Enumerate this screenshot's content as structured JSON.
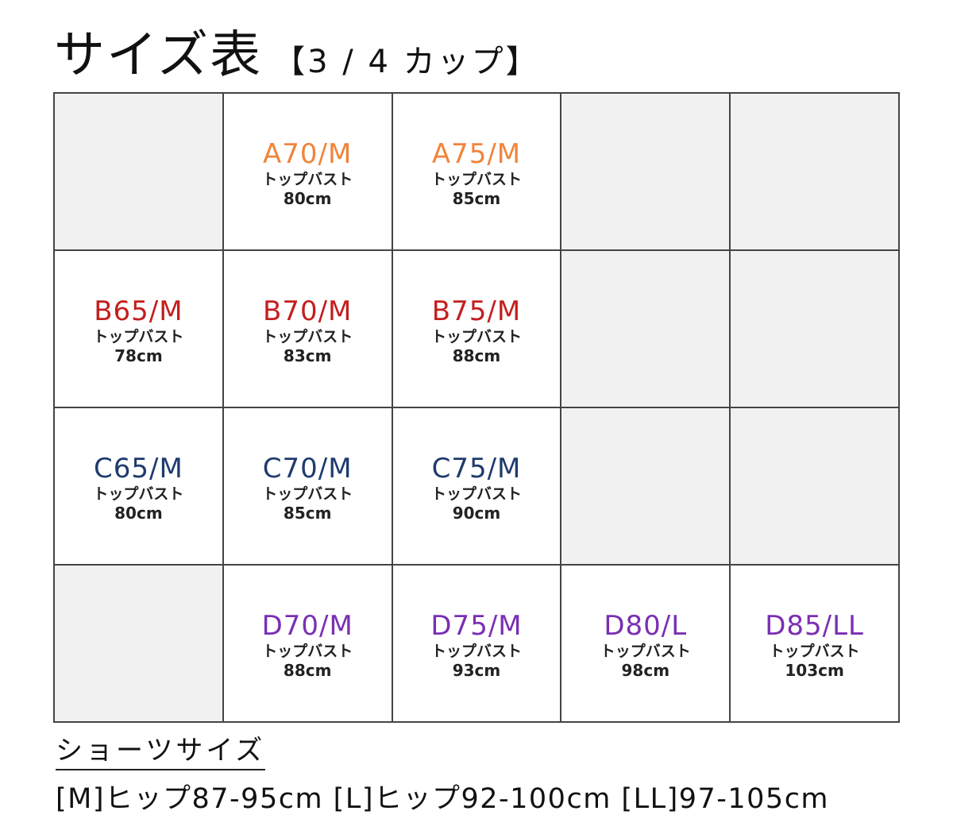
{
  "title": {
    "main": "サイズ表",
    "sub": "【3 / 4 カップ】"
  },
  "colors": {
    "A": "#f0843a",
    "B": "#c41e1e",
    "C": "#1f3b6e",
    "D": "#7a2fb3",
    "empty_cell": "#f1f1f1",
    "border": "#444444"
  },
  "grid": {
    "rows": [
      [
        null,
        {
          "size": "A70/M",
          "cup": "A",
          "label": "トップバスト",
          "value": "80cm"
        },
        {
          "size": "A75/M",
          "cup": "A",
          "label": "トップバスト",
          "value": "85cm"
        },
        null,
        null
      ],
      [
        {
          "size": "B65/M",
          "cup": "B",
          "label": "トップバスト",
          "value": "78cm"
        },
        {
          "size": "B70/M",
          "cup": "B",
          "label": "トップバスト",
          "value": "83cm"
        },
        {
          "size": "B75/M",
          "cup": "B",
          "label": "トップバスト",
          "value": "88cm"
        },
        null,
        null
      ],
      [
        {
          "size": "C65/M",
          "cup": "C",
          "label": "トップバスト",
          "value": "80cm"
        },
        {
          "size": "C70/M",
          "cup": "C",
          "label": "トップバスト",
          "value": "85cm"
        },
        {
          "size": "C75/M",
          "cup": "C",
          "label": "トップバスト",
          "value": "90cm"
        },
        null,
        null
      ],
      [
        null,
        {
          "size": "D70/M",
          "cup": "D",
          "label": "トップバスト",
          "value": "88cm"
        },
        {
          "size": "D75/M",
          "cup": "D",
          "label": "トップバスト",
          "value": "93cm"
        },
        {
          "size": "D80/L",
          "cup": "D",
          "label": "トップバスト",
          "value": "98cm"
        },
        {
          "size": "D85/LL",
          "cup": "D",
          "label": "トップバスト",
          "value": "103cm"
        }
      ]
    ]
  },
  "shorts": {
    "heading": "ショーツサイズ",
    "line": "[M]ヒップ87-95cm [L]ヒップ92-100cm [LL]97-105cm"
  }
}
